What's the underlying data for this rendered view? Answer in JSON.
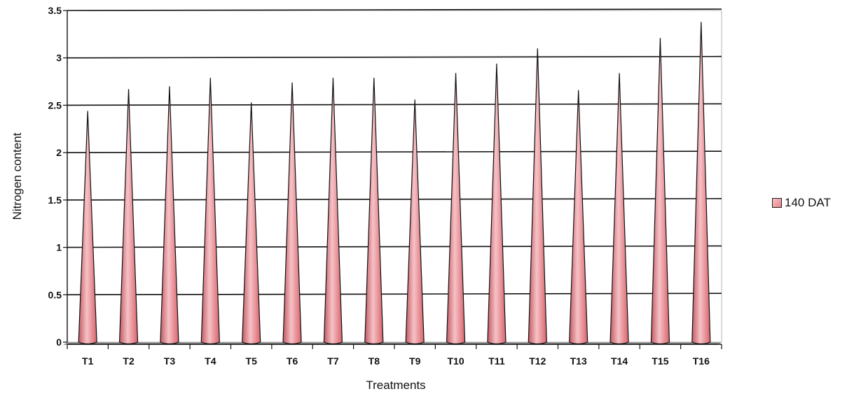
{
  "chart_data": {
    "type": "bar",
    "bar_shape": "cone",
    "categories": [
      "T1",
      "T2",
      "T3",
      "T4",
      "T5",
      "T6",
      "T7",
      "T8",
      "T9",
      "T10",
      "T11",
      "T12",
      "T13",
      "T14",
      "T15",
      "T16"
    ],
    "series": [
      {
        "name": "140 DAT",
        "values": [
          2.44,
          2.67,
          2.7,
          2.79,
          2.53,
          2.74,
          2.79,
          2.79,
          2.56,
          2.84,
          2.94,
          3.1,
          2.66,
          2.84,
          3.21,
          3.38
        ]
      }
    ],
    "xlabel": "Treatments",
    "ylabel": "Nitrogen content",
    "ylim": [
      0,
      3.5
    ],
    "yticks": [
      "0",
      "0.5",
      "1",
      "1.5",
      "2",
      "2.5",
      "3",
      "3.5"
    ],
    "grid": true,
    "legend_position": "right",
    "colors": {
      "series": "#e8828a",
      "series_dark": "#c25a63",
      "series_light": "#f6c2c6",
      "grid": "#111111",
      "floor": "#9a9a9a"
    }
  }
}
